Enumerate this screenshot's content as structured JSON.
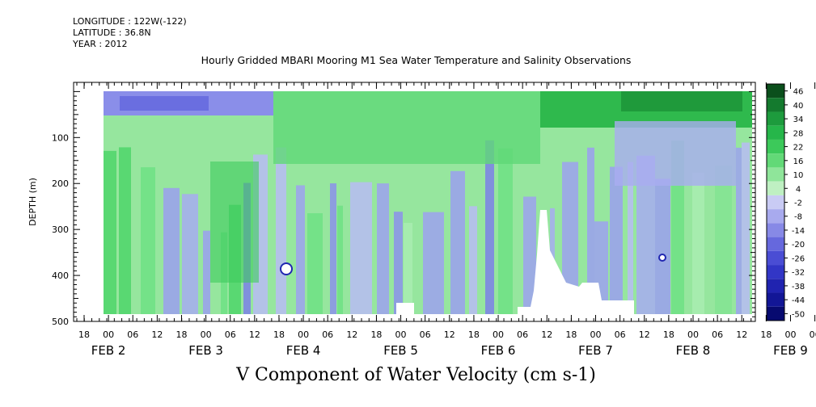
{
  "header": {
    "longitude": "LONGITUDE : 122W(-122)",
    "latitude": "LATITUDE : 36.8N",
    "year": "YEAR : 2012"
  },
  "title": "Hourly Gridded MBARI Mooring M1 Sea Water Temperature and Salinity Observations",
  "bottom_title": "V Component of Water Velocity (cm s-1)",
  "chart_data": {
    "type": "heatmap",
    "ylabel": "DEPTH (m)",
    "ylim": [
      0,
      500
    ],
    "y_reversed": true,
    "y_ticks": [
      "100",
      "200",
      "300",
      "400",
      "500"
    ],
    "x_hour_ticks": [
      "18",
      "00",
      "06",
      "12",
      "18",
      "00",
      "06",
      "12",
      "18",
      "00",
      "06",
      "12",
      "18",
      "00",
      "06",
      "12",
      "18",
      "00",
      "06",
      "12",
      "18",
      "00",
      "06",
      "12",
      "18",
      "00",
      "06",
      "12",
      "18",
      "00",
      "06",
      "12"
    ],
    "x_day_labels": [
      "FEB  2",
      "FEB  3",
      "FEB  4",
      "FEB  5",
      "FEB  6",
      "FEB  7",
      "FEB  8",
      "FEB  9"
    ],
    "colorbar_labels": [
      "46",
      "40",
      "34",
      "28",
      "22",
      "16",
      "10",
      "4",
      "-2",
      "-8",
      "-14",
      "-20",
      "-26",
      "-32",
      "-38",
      "-44",
      "-50"
    ],
    "colorbar_colors": [
      "#0b4f1c",
      "#147a2e",
      "#1d9b3d",
      "#26b64a",
      "#3cc95a",
      "#62d977",
      "#8fe59a",
      "#bff0c2",
      "#c9cbf4",
      "#a8aaee",
      "#8789e6",
      "#6668dd",
      "#4a4dd4",
      "#3236c6",
      "#2023b0",
      "#121696",
      "#070a70"
    ]
  }
}
